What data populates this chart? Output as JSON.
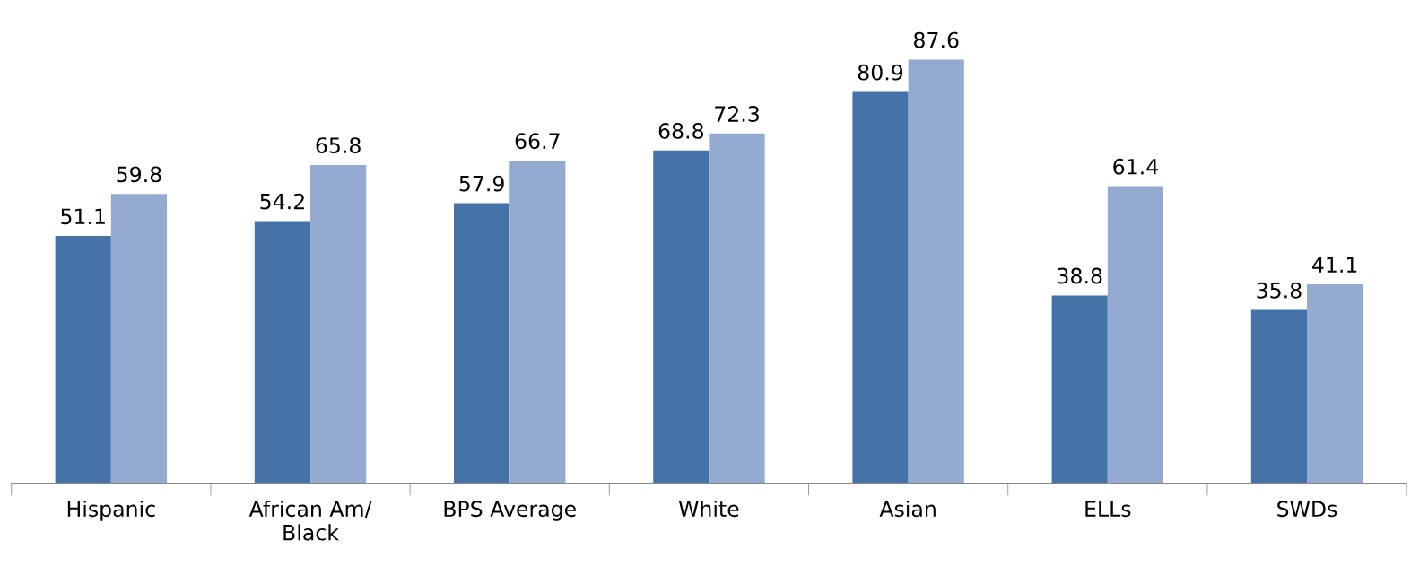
{
  "chart_data": {
    "type": "bar",
    "categories": [
      "Hispanic",
      "African Am/\nBlack",
      "BPS Average",
      "White",
      "Asian",
      "ELLs",
      "SWDs"
    ],
    "series": [
      {
        "color": "#4573a7",
        "values": [
          51.1,
          54.2,
          57.9,
          68.8,
          80.9,
          38.8,
          35.8
        ]
      },
      {
        "color": "#95aad1",
        "values": [
          59.8,
          65.8,
          66.7,
          72.3,
          87.6,
          61.4,
          41.1
        ]
      }
    ],
    "tick_labels": "x",
    "data_labels": true
  }
}
